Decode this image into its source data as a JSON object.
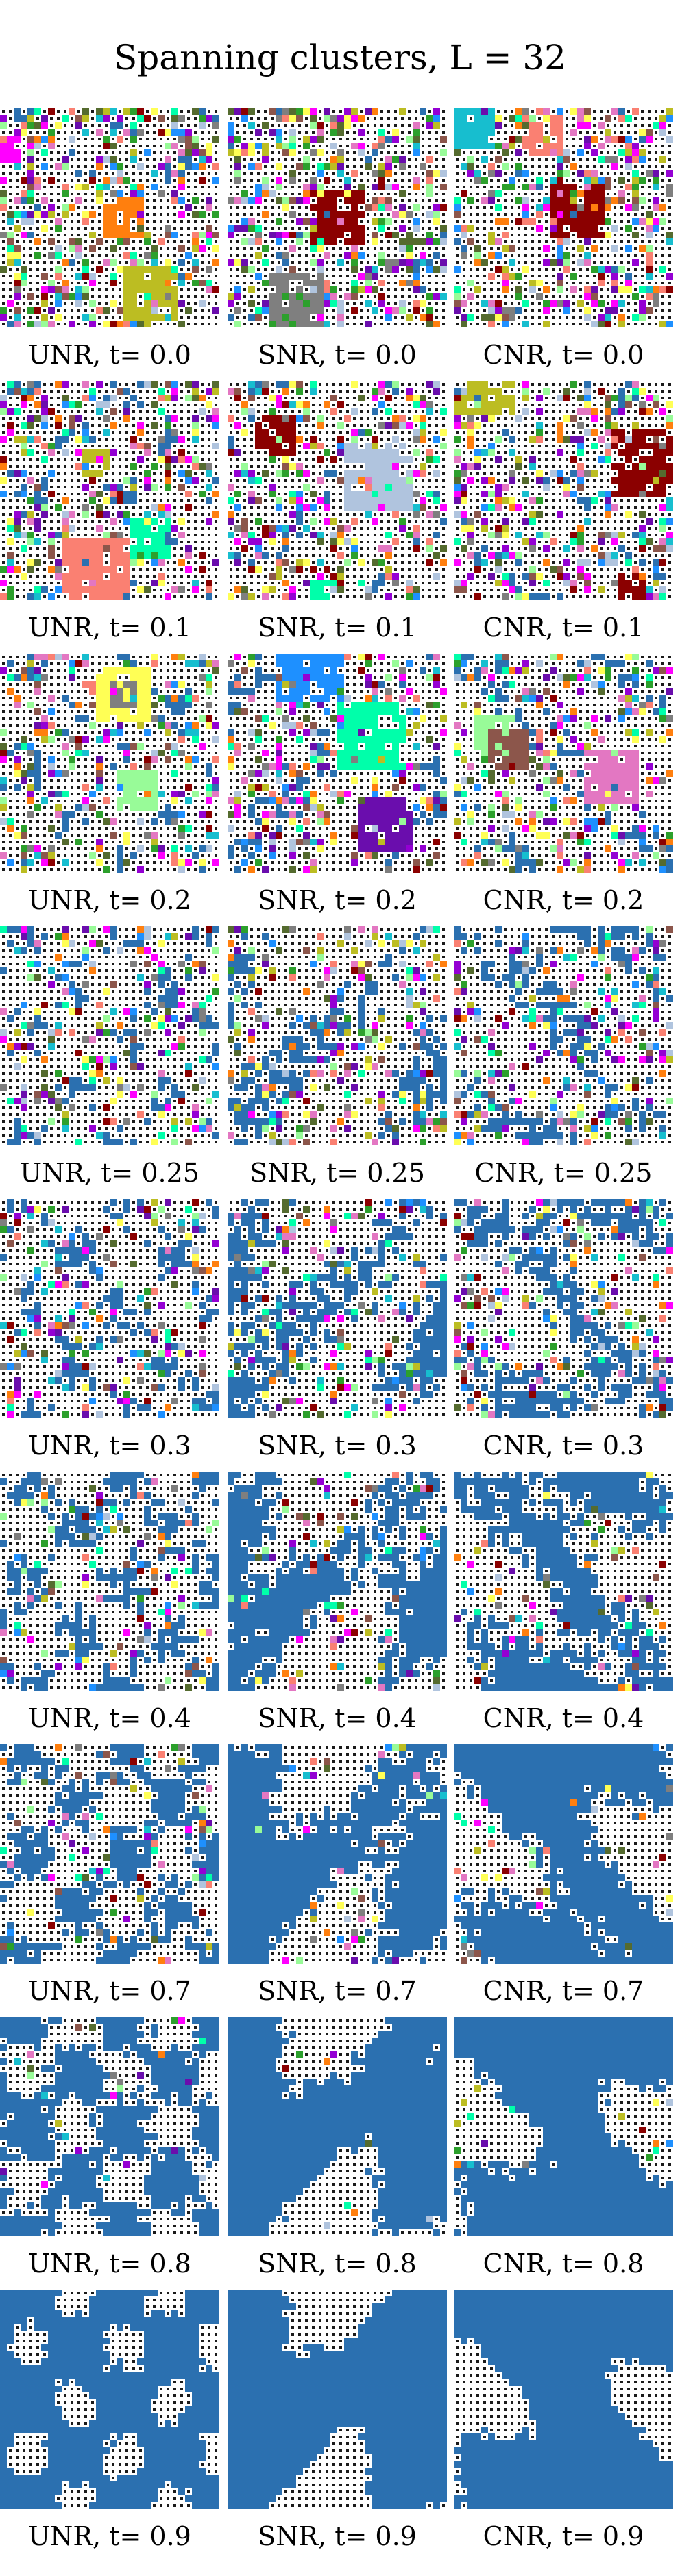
{
  "title": "Spanning clusters, L = 32",
  "lattice_size": 32,
  "columns": [
    {
      "model": "UNR"
    },
    {
      "model": "SNR"
    },
    {
      "model": "CNR"
    }
  ],
  "time_values": [
    "0.0",
    "0.1",
    "0.2",
    "0.25",
    "0.3",
    "0.4",
    "0.7",
    "0.8",
    "0.9"
  ],
  "captions": [
    [
      "UNR, t= 0.0",
      "SNR, t= 0.0",
      "CNR, t= 0.0"
    ],
    [
      "UNR, t= 0.1",
      "SNR, t= 0.1",
      "CNR, t= 0.1"
    ],
    [
      "UNR, t= 0.2",
      "SNR, t= 0.2",
      "CNR, t= 0.2"
    ],
    [
      "UNR, t= 0.25",
      "SNR, t= 0.25",
      "CNR, t= 0.25"
    ],
    [
      "UNR, t= 0.3",
      "SNR, t= 0.3",
      "CNR, t= 0.3"
    ],
    [
      "UNR, t= 0.4",
      "SNR, t= 0.4",
      "CNR, t= 0.4"
    ],
    [
      "UNR, t= 0.7",
      "SNR, t= 0.7",
      "CNR, t= 0.7"
    ],
    [
      "UNR, t= 0.8",
      "SNR, t= 0.8",
      "CNR, t= 0.8"
    ],
    [
      "UNR, t= 0.9",
      "SNR, t= 0.9",
      "CNR, t= 0.9"
    ]
  ],
  "colors": {
    "spanning_cluster": "#2b70b0",
    "cluster_border": "#333333",
    "empty_site": "#ffffff",
    "empty_dot": "#1a1a1a",
    "small_clusters": [
      "#ff7f0e",
      "#2ca02c",
      "#8c564b",
      "#9400d3",
      "#e377c2",
      "#7f7f7f",
      "#bcbd22",
      "#17becf",
      "#ff00ff",
      "#00ffaa",
      "#8b0000",
      "#fa8072",
      "#556b2f",
      "#b0c4de",
      "#ffff55",
      "#6a0dad",
      "#1e90ff",
      "#98fb98"
    ]
  }
}
